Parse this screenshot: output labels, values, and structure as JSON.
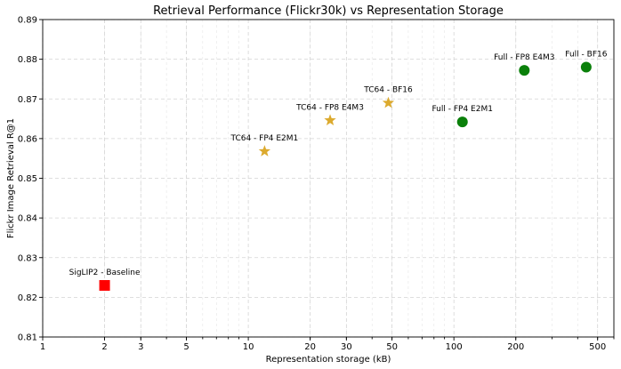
{
  "chart_data": {
    "type": "scatter",
    "title": "Retrieval Performance (Flickr30k) vs Representation Storage",
    "xlabel": "Representation storage (kB)",
    "ylabel": "Flickr Image Retrieval R@1",
    "xscale": "log",
    "xlim": [
      1,
      600
    ],
    "ylim": [
      0.81,
      0.89
    ],
    "xticks": [
      1,
      2,
      3,
      5,
      10,
      20,
      30,
      50,
      100,
      200,
      500
    ],
    "xtick_labels": [
      "1",
      "2",
      "3",
      "5",
      "10",
      "20",
      "30",
      "50",
      "100",
      "200",
      "500"
    ],
    "yticks": [
      0.81,
      0.82,
      0.83,
      0.84,
      0.85,
      0.86,
      0.87,
      0.88,
      0.89
    ],
    "ytick_labels": [
      "0.81",
      "0.82",
      "0.83",
      "0.84",
      "0.85",
      "0.86",
      "0.87",
      "0.88",
      "0.89"
    ],
    "grid": true,
    "series": [
      {
        "name": "Baseline",
        "marker": "square",
        "color": "#ff0000",
        "points": [
          {
            "x": 2.0,
            "y": 0.823,
            "label": "SigLIP2 - Baseline"
          }
        ]
      },
      {
        "name": "TC64",
        "marker": "star",
        "color": "#dcaa2e",
        "points": [
          {
            "x": 12.0,
            "y": 0.8568,
            "label": "TC64 - FP4 E2M1"
          },
          {
            "x": 25.0,
            "y": 0.8646,
            "label": "TC64 - FP8 E4M3"
          },
          {
            "x": 48.0,
            "y": 0.869,
            "label": "TC64 - BF16"
          }
        ]
      },
      {
        "name": "Full",
        "marker": "circle",
        "color": "#0a800a",
        "points": [
          {
            "x": 110.0,
            "y": 0.8642,
            "label": "Full - FP4 E2M1"
          },
          {
            "x": 220.0,
            "y": 0.8772,
            "label": "Full - FP8 E4M3"
          },
          {
            "x": 440.0,
            "y": 0.878,
            "label": "Full - BF16"
          }
        ]
      }
    ]
  }
}
